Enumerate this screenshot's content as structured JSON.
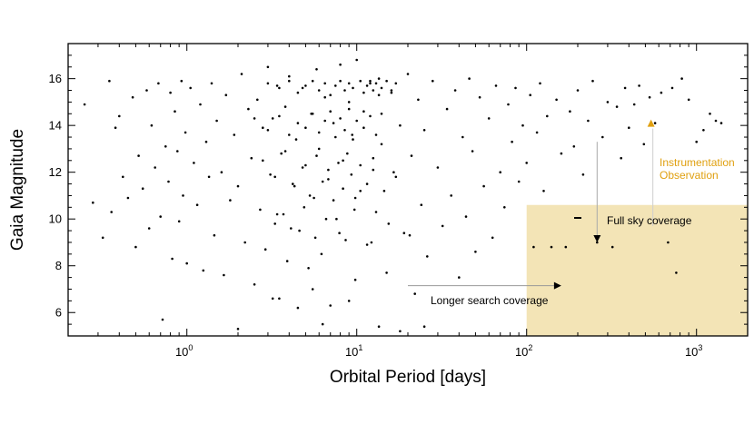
{
  "chart_data": {
    "type": "scatter",
    "title": "",
    "xlabel": "Orbital Period [days]",
    "ylabel": "Gaia Magnitude",
    "xscale": "log",
    "xlim": [
      0.2,
      2000
    ],
    "ylim": [
      5,
      17.5
    ],
    "grid": false,
    "legend": "none",
    "x_ticks": [
      {
        "base": "10",
        "exp": "0",
        "value": 1
      },
      {
        "base": "10",
        "exp": "1",
        "value": 10
      },
      {
        "base": "10",
        "exp": "2",
        "value": 100
      },
      {
        "base": "10",
        "exp": "3",
        "value": 1000
      }
    ],
    "y_ticks": [
      {
        "label": "6",
        "value": 6
      },
      {
        "label": "8",
        "value": 8
      },
      {
        "label": "10",
        "value": 10
      },
      {
        "label": "12",
        "value": 12
      },
      {
        "label": "14",
        "value": 14
      },
      {
        "label": "16",
        "value": 16
      }
    ],
    "shaded_region": {
      "x": [
        100,
        2000
      ],
      "y": [
        5,
        10.6
      ],
      "color": "#f3e4b6"
    },
    "point_color": "#000000",
    "series": [
      {
        "marker": "dot",
        "points": [
          [
            0.25,
            14.9
          ],
          [
            0.28,
            10.7
          ],
          [
            0.32,
            9.2
          ],
          [
            0.35,
            15.9
          ],
          [
            0.36,
            10.3
          ],
          [
            0.38,
            13.9
          ],
          [
            0.4,
            14.4
          ],
          [
            0.42,
            11.8
          ],
          [
            0.45,
            10.9
          ],
          [
            0.48,
            15.2
          ],
          [
            0.5,
            8.8
          ],
          [
            0.52,
            12.7
          ],
          [
            0.55,
            11.3
          ],
          [
            0.58,
            15.5
          ],
          [
            0.6,
            9.6
          ],
          [
            0.62,
            14.0
          ],
          [
            0.65,
            12.2
          ],
          [
            0.68,
            15.8
          ],
          [
            0.7,
            10.1
          ],
          [
            0.72,
            5.7
          ],
          [
            0.75,
            13.1
          ],
          [
            0.78,
            11.6
          ],
          [
            0.8,
            15.4
          ],
          [
            0.82,
            8.3
          ],
          [
            0.85,
            14.6
          ],
          [
            0.88,
            12.9
          ],
          [
            0.9,
            9.9
          ],
          [
            0.93,
            15.9
          ],
          [
            0.95,
            11.0
          ],
          [
            0.98,
            13.7
          ],
          [
            1.0,
            8.1
          ],
          [
            1.05,
            15.6
          ],
          [
            1.1,
            12.4
          ],
          [
            1.15,
            10.6
          ],
          [
            1.2,
            14.9
          ],
          [
            1.25,
            7.8
          ],
          [
            1.3,
            13.3
          ],
          [
            1.35,
            11.8
          ],
          [
            1.4,
            15.8
          ],
          [
            1.45,
            9.3
          ],
          [
            1.5,
            14.2
          ],
          [
            1.6,
            12.0
          ],
          [
            1.65,
            7.6
          ],
          [
            1.7,
            15.3
          ],
          [
            1.8,
            10.8
          ],
          [
            1.9,
            13.6
          ],
          [
            2.0,
            11.4
          ],
          [
            2.1,
            16.2
          ],
          [
            2.2,
            9.0
          ],
          [
            2.3,
            14.7
          ],
          [
            2.4,
            12.6
          ],
          [
            2.5,
            7.2
          ],
          [
            2.6,
            15.1
          ],
          [
            2.7,
            10.4
          ],
          [
            2.8,
            13.9
          ],
          [
            2.9,
            8.7
          ],
          [
            3.0,
            16.5
          ],
          [
            3.1,
            11.9
          ],
          [
            3.2,
            14.3
          ],
          [
            3.3,
            9.8
          ],
          [
            3.4,
            15.7
          ],
          [
            3.5,
            6.6
          ],
          [
            3.6,
            12.8
          ],
          [
            3.7,
            10.2
          ],
          [
            3.8,
            14.8
          ],
          [
            3.9,
            8.2
          ],
          [
            4.0,
            16.1
          ],
          [
            4.2,
            11.5
          ],
          [
            4.4,
            13.4
          ],
          [
            4.6,
            9.5
          ],
          [
            4.8,
            15.6
          ],
          [
            5.0,
            12.3
          ],
          [
            5.2,
            7.9
          ],
          [
            5.4,
            14.5
          ],
          [
            5.6,
            10.9
          ],
          [
            5.8,
            16.4
          ],
          [
            6.0,
            13.0
          ],
          [
            6.2,
            8.5
          ],
          [
            6.5,
            15.2
          ],
          [
            6.8,
            11.7
          ],
          [
            7.0,
            6.3
          ],
          [
            7.3,
            14.1
          ],
          [
            7.6,
            10.0
          ],
          [
            8.0,
            16.6
          ],
          [
            8.3,
            12.5
          ],
          [
            8.6,
            9.1
          ],
          [
            9.0,
            15.0
          ],
          [
            9.4,
            13.6
          ],
          [
            9.8,
            7.4
          ],
          [
            10.0,
            16.8
          ],
          [
            10.5,
            11.2
          ],
          [
            11.0,
            14.6
          ],
          [
            11.5,
            8.9
          ],
          [
            12.0,
            15.8
          ],
          [
            12.5,
            12.1
          ],
          [
            13.0,
            10.3
          ],
          [
            13.5,
            16.0
          ],
          [
            14.0,
            13.2
          ],
          [
            15.0,
            7.7
          ],
          [
            16.0,
            15.4
          ],
          [
            17.0,
            11.8
          ],
          [
            18.0,
            14.0
          ],
          [
            19.0,
            9.4
          ],
          [
            20.0,
            16.2
          ],
          [
            21.0,
            12.7
          ],
          [
            22.0,
            6.8
          ],
          [
            23.0,
            15.1
          ],
          [
            24.0,
            10.6
          ],
          [
            25.0,
            13.8
          ],
          [
            26.0,
            8.4
          ],
          [
            28.0,
            15.9
          ],
          [
            30.0,
            12.2
          ],
          [
            32.0,
            9.7
          ],
          [
            34.0,
            14.7
          ],
          [
            36.0,
            11.0
          ],
          [
            38.0,
            15.5
          ],
          [
            40.0,
            7.5
          ],
          [
            42.0,
            13.5
          ],
          [
            44.0,
            10.1
          ],
          [
            46.0,
            16.0
          ],
          [
            48.0,
            12.9
          ],
          [
            50.0,
            8.6
          ],
          [
            53.0,
            15.2
          ],
          [
            56.0,
            11.4
          ],
          [
            60.0,
            14.3
          ],
          [
            63.0,
            9.2
          ],
          [
            66.0,
            15.7
          ],
          [
            70.0,
            12.0
          ],
          [
            74.0,
            10.5
          ],
          [
            78.0,
            14.9
          ],
          [
            82.0,
            13.3
          ],
          [
            86.0,
            15.6
          ],
          [
            90.0,
            11.6
          ],
          [
            95.0,
            14.0
          ],
          [
            100.0,
            12.4
          ],
          [
            105.0,
            15.3
          ],
          [
            110.0,
            8.8
          ],
          [
            115.0,
            13.7
          ],
          [
            120.0,
            15.8
          ],
          [
            126.0,
            11.2
          ],
          [
            132.0,
            14.4
          ],
          [
            140.0,
            8.8
          ],
          [
            150.0,
            15.1
          ],
          [
            160.0,
            12.8
          ],
          [
            170.0,
            8.8
          ],
          [
            180.0,
            14.6
          ],
          [
            190.0,
            13.1
          ],
          [
            200.0,
            15.5
          ],
          [
            215.0,
            11.9
          ],
          [
            230.0,
            14.2
          ],
          [
            245.0,
            15.9
          ],
          [
            260.0,
            9.0
          ],
          [
            280.0,
            13.5
          ],
          [
            300.0,
            15.0
          ],
          [
            320.0,
            8.8
          ],
          [
            340.0,
            14.8
          ],
          [
            360.0,
            12.6
          ],
          [
            380.0,
            15.6
          ],
          [
            400.0,
            13.9
          ],
          [
            430.0,
            14.9
          ],
          [
            460.0,
            15.7
          ],
          [
            490.0,
            13.2
          ],
          [
            530.0,
            15.2
          ],
          [
            570.0,
            14.1
          ],
          [
            620.0,
            15.4
          ],
          [
            680.0,
            9.0
          ],
          [
            720.0,
            15.6
          ],
          [
            760.0,
            7.7
          ],
          [
            820.0,
            16.0
          ],
          [
            900.0,
            15.1
          ],
          [
            1000.0,
            13.3
          ],
          [
            1100.0,
            13.8
          ],
          [
            1200.0,
            14.5
          ],
          [
            1300.0,
            14.2
          ],
          [
            1400.0,
            14.1
          ],
          [
            6.3,
            5.5
          ],
          [
            5.5,
            7.0
          ],
          [
            3.2,
            6.6
          ],
          [
            2.0,
            5.3
          ],
          [
            13.5,
            5.4
          ],
          [
            18.0,
            5.2
          ],
          [
            9.0,
            6.5
          ],
          [
            4.5,
            6.2
          ],
          [
            3.7,
            4.9
          ],
          [
            25.0,
            5.4
          ],
          [
            3.0,
            15.8
          ],
          [
            3.5,
            15.6
          ],
          [
            4.0,
            15.9
          ],
          [
            4.5,
            15.4
          ],
          [
            5.0,
            15.7
          ],
          [
            5.5,
            15.9
          ],
          [
            6.0,
            15.5
          ],
          [
            6.5,
            15.8
          ],
          [
            7.0,
            15.3
          ],
          [
            7.5,
            15.7
          ],
          [
            8.0,
            15.9
          ],
          [
            8.5,
            15.5
          ],
          [
            9.0,
            15.8
          ],
          [
            9.5,
            15.6
          ],
          [
            10.5,
            15.9
          ],
          [
            11.0,
            15.4
          ],
          [
            11.5,
            15.7
          ],
          [
            12.0,
            15.9
          ],
          [
            12.5,
            15.5
          ],
          [
            13.0,
            15.8
          ],
          [
            13.5,
            15.3
          ],
          [
            14.0,
            15.6
          ],
          [
            15.0,
            15.9
          ],
          [
            16.0,
            15.5
          ],
          [
            17.0,
            15.8
          ],
          [
            2.5,
            14.3
          ],
          [
            3.0,
            13.8
          ],
          [
            3.5,
            14.4
          ],
          [
            4.0,
            13.6
          ],
          [
            4.5,
            14.1
          ],
          [
            5.0,
            13.9
          ],
          [
            5.5,
            14.5
          ],
          [
            6.0,
            13.7
          ],
          [
            6.5,
            14.2
          ],
          [
            7.0,
            14.6
          ],
          [
            7.5,
            13.5
          ],
          [
            8.0,
            14.3
          ],
          [
            8.5,
            13.8
          ],
          [
            9.0,
            14.7
          ],
          [
            9.5,
            13.4
          ],
          [
            10.0,
            14.2
          ],
          [
            11.0,
            13.9
          ],
          [
            12.0,
            14.4
          ],
          [
            13.0,
            13.6
          ],
          [
            14.0,
            14.5
          ],
          [
            2.8,
            12.5
          ],
          [
            3.3,
            11.8
          ],
          [
            3.8,
            12.9
          ],
          [
            4.3,
            11.4
          ],
          [
            4.8,
            12.2
          ],
          [
            5.3,
            11.0
          ],
          [
            5.8,
            12.7
          ],
          [
            6.3,
            11.6
          ],
          [
            6.8,
            12.1
          ],
          [
            7.3,
            10.8
          ],
          [
            7.8,
            12.4
          ],
          [
            8.3,
            11.3
          ],
          [
            8.8,
            12.8
          ],
          [
            9.3,
            11.9
          ],
          [
            9.8,
            10.9
          ],
          [
            10.5,
            12.3
          ],
          [
            11.5,
            11.5
          ],
          [
            12.5,
            12.6
          ],
          [
            14.5,
            11.2
          ],
          [
            16.5,
            12.0
          ],
          [
            3.4,
            10.2
          ],
          [
            4.1,
            9.6
          ],
          [
            4.9,
            10.5
          ],
          [
            5.7,
            9.2
          ],
          [
            6.6,
            10.0
          ],
          [
            7.9,
            9.4
          ],
          [
            9.7,
            10.4
          ],
          [
            12.2,
            9.0
          ],
          [
            15.4,
            9.8
          ],
          [
            20.5,
            9.3
          ]
        ]
      }
    ],
    "annotations": [
      {
        "text_lines": [
          "Instrumentation",
          "Observation"
        ],
        "color": "#e0a010",
        "marker": "triangle",
        "x": 540,
        "y": 14.1
      },
      {
        "text_lines": [
          "Full sky coverage"
        ],
        "color": "#000000",
        "arrow_from": [
          260,
          13.3
        ],
        "arrow_to": [
          260,
          9.0
        ]
      },
      {
        "text_lines": [
          "Longer search coverage"
        ],
        "color": "#000000",
        "arrow_from": [
          20,
          7.15
        ],
        "arrow_to": [
          160,
          7.15
        ]
      }
    ]
  }
}
